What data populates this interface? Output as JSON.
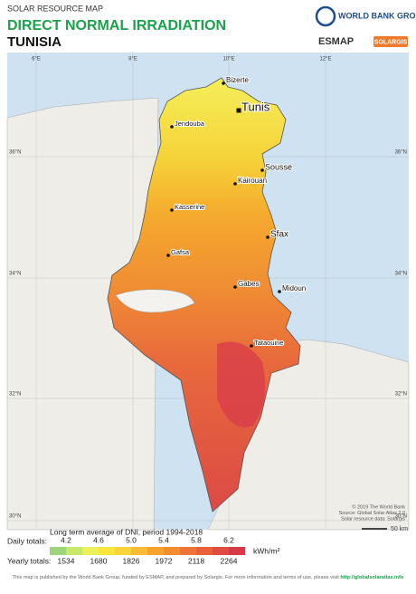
{
  "header": {
    "kicker": "SOLAR RESOURCE MAP",
    "title": "DIRECT NORMAL IRRADIATION",
    "country": "TUNISIA"
  },
  "logos": {
    "world_bank": "WORLD BANK GROUP",
    "esmap": "ESMAP",
    "solargis": "SOLARGIS"
  },
  "graticule": {
    "longitudes": [
      "6°E",
      "8°E",
      "10°E",
      "12°E"
    ],
    "latitudes": [
      "36°N",
      "34°N",
      "32°N",
      "30°N"
    ]
  },
  "cities": [
    "Bizerte",
    "Tunis",
    "Jendouba",
    "Sousse",
    "Kairouan",
    "Kasserine",
    "Sfax",
    "Gafsa",
    "Gabes",
    "Midoun",
    "Tataouine"
  ],
  "credits": [
    "© 2019 The World Bank",
    "Source: Global Solar Atlas 2.0",
    "Solar resource data: Solargis"
  ],
  "scale": "50 km",
  "legend": {
    "caption": "Long term average of DNI, period 1994-2018",
    "daily_label": "Daily totals:",
    "daily": [
      "4.2",
      "4.6",
      "5.0",
      "5.4",
      "5.8",
      "6.2"
    ],
    "unit": "kWh/m²",
    "yearly_label": "Yearly totals:",
    "yearly": [
      "1534",
      "1680",
      "1826",
      "1972",
      "2118",
      "2264"
    ]
  },
  "footer": {
    "text": "This map is published by the World Bank Group, funded by ESMAP, and prepared by Solargis. For more information and terms of use, please visit",
    "link": "http://globalsolaratlas.info"
  }
}
